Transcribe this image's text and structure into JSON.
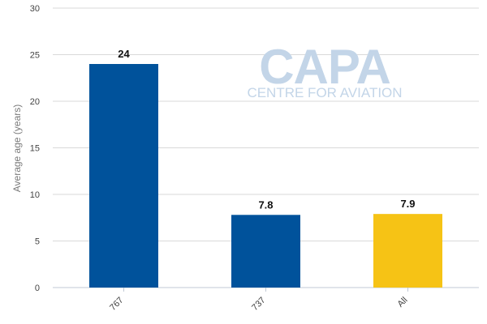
{
  "chart_data": {
    "type": "bar",
    "categories": [
      "767",
      "737",
      "All"
    ],
    "values": [
      24,
      7.8,
      7.9
    ],
    "data_labels": [
      "24",
      "7.8",
      "7.9"
    ],
    "bar_colors": [
      "#00529b",
      "#00529b",
      "#f6c315"
    ],
    "title": "",
    "xlabel": "",
    "ylabel": "Average age (years)",
    "ylim": [
      0,
      30
    ],
    "yticks": [
      0,
      5,
      10,
      15,
      20,
      25,
      30
    ],
    "grid": true,
    "legend": "none"
  },
  "watermark": {
    "main": "CAPA",
    "sub": "CENTRE FOR AVIATION"
  }
}
